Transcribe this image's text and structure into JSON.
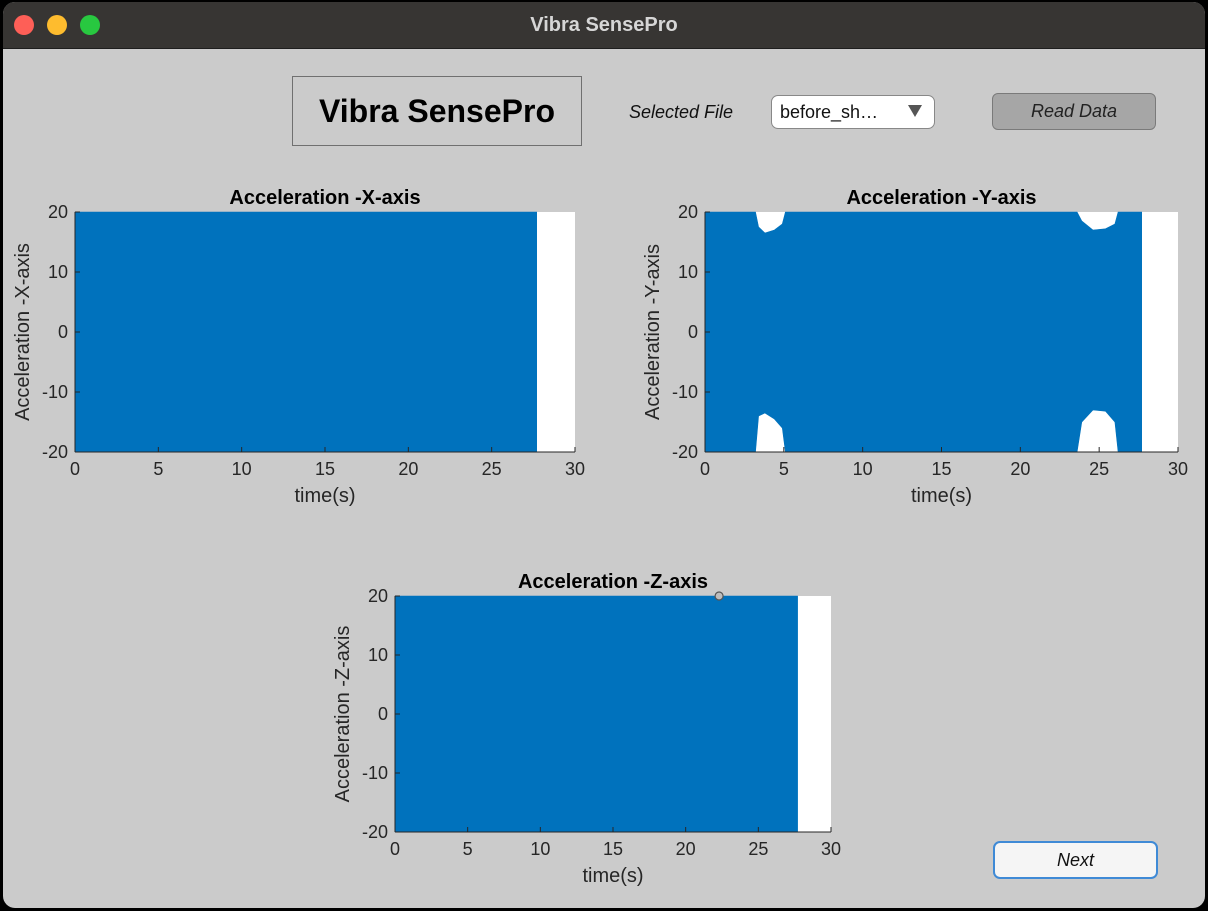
{
  "window": {
    "title": "Vibra SensePro"
  },
  "header": {
    "app_title": "Vibra SensePro",
    "selected_file_label": "Selected File",
    "selected_file_value": "before_sh…",
    "read_button_label": "Read Data"
  },
  "footer": {
    "next_button_label": "Next"
  },
  "colors": {
    "series": "#0072bd",
    "plot_background": "#ffffff",
    "window_background": "#cbcbcb",
    "titlebar": "#373533"
  },
  "chart_data": [
    {
      "id": "x",
      "type": "area",
      "title": "Acceleration -X-axis",
      "xlabel": "time(s)",
      "ylabel": "Acceleration -X-axis",
      "xlim": [
        0,
        30
      ],
      "ylim": [
        -20,
        20
      ],
      "xticks": [
        "0",
        "5",
        "10",
        "15",
        "20",
        "25",
        "30"
      ],
      "yticks": [
        "-20",
        "-10",
        "0",
        "10",
        "20"
      ],
      "series": [
        {
          "x": [
            0,
            27.7
          ],
          "upper": [
            20,
            20
          ],
          "lower": [
            -20,
            -20
          ]
        }
      ],
      "grid": false
    },
    {
      "id": "y",
      "type": "area",
      "title": "Acceleration -Y-axis",
      "xlabel": "time(s)",
      "ylabel": "Acceleration -Y-axis",
      "xlim": [
        0,
        30
      ],
      "ylim": [
        -20,
        20
      ],
      "xticks": [
        "0",
        "5",
        "10",
        "15",
        "20",
        "25",
        "30"
      ],
      "yticks": [
        "-20",
        "-10",
        "0",
        "10",
        "20"
      ],
      "series": [
        {
          "x": [
            0,
            3.2,
            3.4,
            3.8,
            4.4,
            4.9,
            5.1,
            23.6,
            23.9,
            24.6,
            25.4,
            26.0,
            26.2,
            27.7
          ],
          "upper": [
            20,
            20,
            17.5,
            16.5,
            17.0,
            18.0,
            20,
            20,
            18.5,
            17.0,
            17.2,
            18.0,
            20,
            20
          ],
          "lower": [
            -20,
            -20,
            -14.0,
            -13.5,
            -14.5,
            -16.0,
            -20,
            -20,
            -15.0,
            -13.0,
            -13.2,
            -15.0,
            -20,
            -20
          ]
        }
      ],
      "grid": false
    },
    {
      "id": "z",
      "type": "area",
      "title": "Acceleration -Z-axis",
      "xlabel": "time(s)",
      "ylabel": "Acceleration -Z-axis",
      "xlim": [
        0,
        30
      ],
      "ylim": [
        -20,
        20
      ],
      "xticks": [
        "0",
        "5",
        "10",
        "15",
        "20",
        "25",
        "30"
      ],
      "yticks": [
        "-20",
        "-10",
        "0",
        "10",
        "20"
      ],
      "series": [
        {
          "x": [
            0,
            27.7
          ],
          "upper": [
            20,
            20
          ],
          "lower": [
            -20,
            -20
          ]
        }
      ],
      "datatip": {
        "x": 22.3,
        "y": 20
      },
      "grid": false
    }
  ]
}
